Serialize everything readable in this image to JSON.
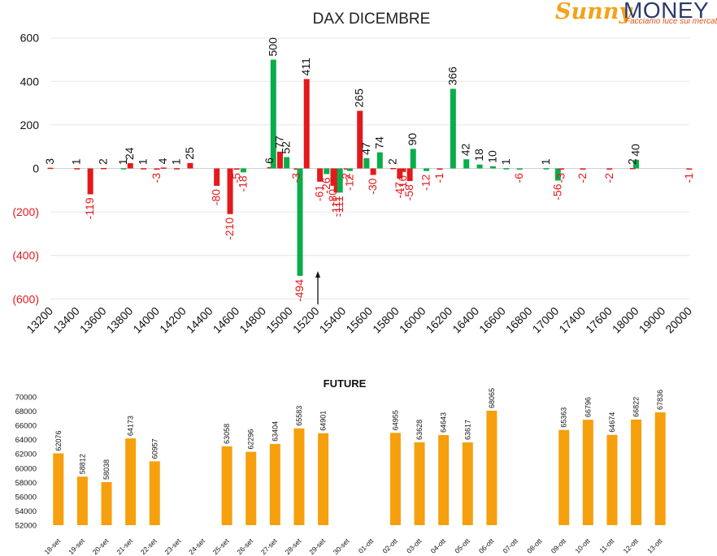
{
  "logo": {
    "brand_part1": "Sunny",
    "brand_part2": "MONEY",
    "tagline": "Facciamo luce sui mercati"
  },
  "colors": {
    "positive": "#0aad4a",
    "negative": "#e3191c",
    "future": "#f5a00c",
    "grid": "#e6e6e6"
  },
  "chart_data": [
    {
      "type": "bar",
      "title": "DAX DICEMBRE",
      "ylim": [
        -600,
        600
      ],
      "y_ticks": [
        {
          "value": 600,
          "label": "600"
        },
        {
          "value": 400,
          "label": "400"
        },
        {
          "value": 200,
          "label": "200"
        },
        {
          "value": 0,
          "label": "0"
        },
        {
          "value": -200,
          "label": "(200)"
        },
        {
          "value": -400,
          "label": "(400)"
        },
        {
          "value": -600,
          "label": "(600)"
        }
      ],
      "x_ticks": [
        13200,
        13400,
        13600,
        13800,
        14000,
        14200,
        14400,
        14600,
        14800,
        15000,
        15200,
        15400,
        15600,
        15800,
        16000,
        16200,
        16400,
        16600,
        16800,
        17000,
        17400,
        17600,
        18000,
        19000,
        20000
      ],
      "grid": true,
      "annotation": "arrow pointing up at strike 15200",
      "bars": [
        {
          "x": 13200,
          "series": "red",
          "value": 3,
          "label": "3"
        },
        {
          "x": 13400,
          "series": "red",
          "value": 1,
          "label": "1"
        },
        {
          "x": 13500,
          "series": "red",
          "value": -119,
          "label": "-119"
        },
        {
          "x": 13600,
          "series": "red",
          "value": 2,
          "label": "2"
        },
        {
          "x": 13750,
          "series": "green",
          "value": 1,
          "label": "1"
        },
        {
          "x": 13800,
          "series": "red",
          "value": 24,
          "label": "24"
        },
        {
          "x": 13900,
          "series": "red",
          "value": 1,
          "label": "1"
        },
        {
          "x": 14000,
          "series": "red",
          "value": -3,
          "label": "-3"
        },
        {
          "x": 14050,
          "series": "red",
          "value": 4,
          "label": "4"
        },
        {
          "x": 14150,
          "series": "red",
          "value": 1,
          "label": "1"
        },
        {
          "x": 14250,
          "series": "red",
          "value": 25,
          "label": "25"
        },
        {
          "x": 14450,
          "series": "red",
          "value": -80,
          "label": "-80"
        },
        {
          "x": 14550,
          "series": "red",
          "value": -210,
          "label": "-210"
        },
        {
          "x": 14600,
          "series": "red",
          "value": -5,
          "label": "-5"
        },
        {
          "x": 14650,
          "series": "green",
          "value": -18,
          "label": "-18"
        },
        {
          "x": 14850,
          "series": "red",
          "value": 6,
          "label": "6"
        },
        {
          "x": 14875,
          "series": "green",
          "value": 500,
          "label": "500"
        },
        {
          "x": 14925,
          "series": "red",
          "value": 77,
          "label": "77"
        },
        {
          "x": 14975,
          "series": "green",
          "value": 52,
          "label": "52"
        },
        {
          "x": 15050,
          "series": "red",
          "value": -3,
          "label": "-3"
        },
        {
          "x": 15075,
          "series": "green",
          "value": -494,
          "label": "-494"
        },
        {
          "x": 15125,
          "series": "red",
          "value": 411,
          "label": "411"
        },
        {
          "x": 15225,
          "series": "red",
          "value": -61,
          "label": "-61"
        },
        {
          "x": 15275,
          "series": "green",
          "value": -26,
          "label": "-26"
        },
        {
          "x": 15325,
          "series": "red",
          "value": -80,
          "label": "-80"
        },
        {
          "x": 15350,
          "series": "red",
          "value": -111,
          "label": "-111"
        },
        {
          "x": 15375,
          "series": "green",
          "value": -111,
          "label": "-111"
        },
        {
          "x": 15425,
          "series": "red",
          "value": -2,
          "label": "-2"
        },
        {
          "x": 15450,
          "series": "green",
          "value": -12,
          "label": "-12"
        },
        {
          "x": 15525,
          "series": "red",
          "value": 265,
          "label": "265"
        },
        {
          "x": 15575,
          "series": "green",
          "value": 47,
          "label": "47"
        },
        {
          "x": 15625,
          "series": "red",
          "value": -30,
          "label": "-30"
        },
        {
          "x": 15675,
          "series": "green",
          "value": 74,
          "label": "74"
        },
        {
          "x": 15775,
          "series": "red",
          "value": 2,
          "label": "2"
        },
        {
          "x": 15825,
          "series": "red",
          "value": -47,
          "label": "-47"
        },
        {
          "x": 15850,
          "series": "red",
          "value": -16,
          "label": "-16"
        },
        {
          "x": 15900,
          "series": "red",
          "value": -58,
          "label": "-58"
        },
        {
          "x": 15925,
          "series": "green",
          "value": 90,
          "label": "90"
        },
        {
          "x": 16025,
          "series": "green",
          "value": -12,
          "label": "-12"
        },
        {
          "x": 16125,
          "series": "red",
          "value": -1,
          "label": "-1"
        },
        {
          "x": 16225,
          "series": "green",
          "value": 366,
          "label": "366"
        },
        {
          "x": 16325,
          "series": "green",
          "value": 42,
          "label": "42"
        },
        {
          "x": 16425,
          "series": "green",
          "value": 18,
          "label": "18"
        },
        {
          "x": 16525,
          "series": "green",
          "value": 10,
          "label": "10"
        },
        {
          "x": 16625,
          "series": "green",
          "value": 1,
          "label": "1"
        },
        {
          "x": 16725,
          "series": "green",
          "value": -6,
          "label": "-6"
        },
        {
          "x": 16925,
          "series": "green",
          "value": 1,
          "label": "1"
        },
        {
          "x": 17025,
          "series": "green",
          "value": -56,
          "label": "-56"
        },
        {
          "x": 17075,
          "series": "red",
          "value": -3,
          "label": "-3"
        },
        {
          "x": 17400,
          "series": "red",
          "value": -2,
          "label": "-2"
        },
        {
          "x": 17600,
          "series": "red",
          "value": -2,
          "label": "-2"
        },
        {
          "x": 17950,
          "series": "red",
          "value": 2,
          "label": "2"
        },
        {
          "x": 18000,
          "series": "green",
          "value": 40,
          "label": "40"
        },
        {
          "x": 20000,
          "series": "red",
          "value": -1,
          "label": "-1"
        }
      ]
    },
    {
      "type": "bar",
      "title": "FUTURE",
      "ylim": [
        52000,
        70000
      ],
      "y_ticks": [
        70000,
        68000,
        66000,
        64000,
        62000,
        60000,
        58000,
        56000,
        54000,
        52000
      ],
      "categories": [
        "18-set",
        "19-set",
        "20-set",
        "21-set",
        "22-set",
        "23-set",
        "24-set",
        "25-set",
        "26-set",
        "27-set",
        "28-set",
        "29-set",
        "30-set",
        "01-ott",
        "02-ott",
        "03-ott",
        "04-ott",
        "05-ott",
        "06-ott",
        "07-ott",
        "08-ott",
        "09-ott",
        "10-ott",
        "11-ott",
        "12-ott",
        "13-ott"
      ],
      "values": [
        62076,
        58812,
        58038,
        64173,
        60957,
        null,
        null,
        63058,
        62296,
        63404,
        65583,
        64901,
        null,
        null,
        64955,
        63628,
        64643,
        63617,
        68065,
        null,
        null,
        65363,
        66796,
        64674,
        66822,
        67836
      ]
    }
  ]
}
